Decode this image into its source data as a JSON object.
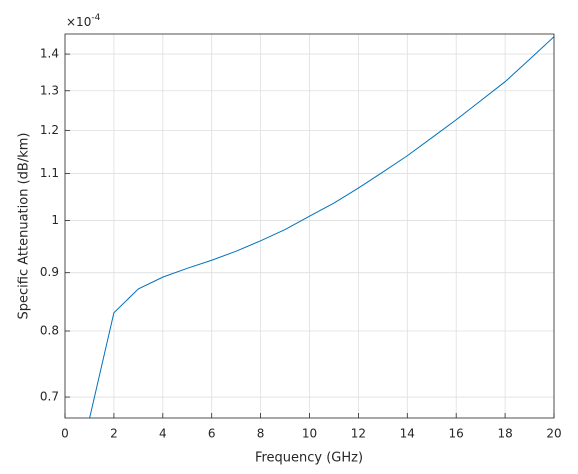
{
  "chart_data": {
    "type": "line",
    "xlabel": "Frequency (GHz)",
    "ylabel": "Specific Attenuation (dB/km)",
    "y_exponent": {
      "base": "×10",
      "power": "-4"
    },
    "x": [
      1,
      2,
      3,
      4,
      5,
      6,
      7,
      8,
      9,
      10,
      11,
      12,
      13,
      14,
      15,
      16,
      17,
      18,
      19,
      20
    ],
    "series": [
      {
        "color": "#0072bd",
        "values": [
          0.67,
          0.83,
          0.871,
          0.892,
          0.908,
          0.923,
          0.94,
          0.96,
          0.982,
          1.009,
          1.036,
          1.068,
          1.103,
          1.14,
          1.182,
          1.226,
          1.274,
          1.324,
          1.385,
          1.45
        ]
      }
    ],
    "xlim": [
      0,
      20
    ],
    "xticks": [
      0,
      2,
      4,
      6,
      8,
      10,
      12,
      14,
      16,
      18,
      20
    ],
    "ylim": [
      0.671,
      1.458
    ],
    "yscale": "log",
    "yticks": [
      0.7,
      0.8,
      0.9,
      {
        "value": 1,
        "label": "1"
      },
      1.1,
      1.2,
      1.3,
      1.4
    ],
    "grid": true
  }
}
